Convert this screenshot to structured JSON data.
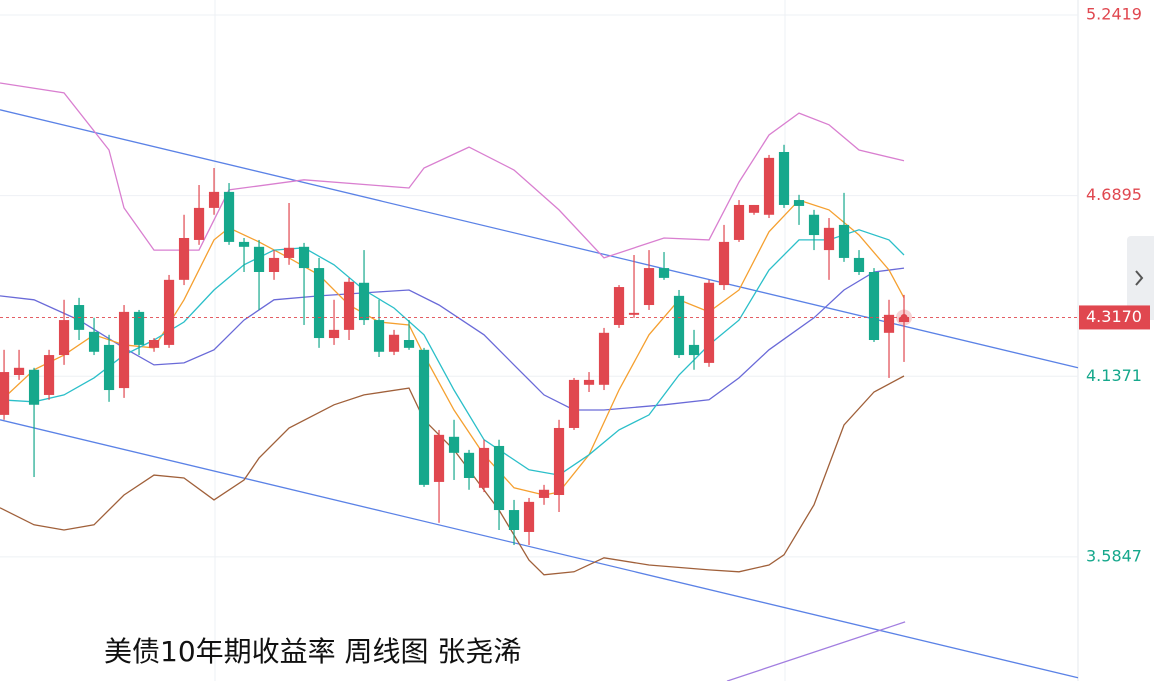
{
  "chart_data": {
    "type": "candlestick",
    "title": "美债10年期收益率 周线图 张尧浠",
    "up_color": "#e0474f",
    "down_color": "#16a88c",
    "xlim": [
      -0.27,
      71.6
    ],
    "ylim": [
      3.2052,
      5.2878
    ],
    "yticks": [
      5.2419,
      4.6895,
      4.1371,
      3.5847
    ],
    "grid": true,
    "last_price": {
      "value": 4.317,
      "label": "4.3170"
    },
    "ohlc": [
      [
        4.019,
        4.218,
        4.004,
        4.15
      ],
      [
        4.141,
        4.218,
        4.126,
        4.163
      ],
      [
        4.157,
        4.163,
        3.829,
        4.05
      ],
      [
        4.08,
        4.218,
        4.065,
        4.202
      ],
      [
        4.202,
        4.371,
        4.172,
        4.309
      ],
      [
        4.355,
        4.377,
        4.248,
        4.279
      ],
      [
        4.273,
        4.316,
        4.202,
        4.212
      ],
      [
        4.233,
        4.264,
        4.059,
        4.095
      ],
      [
        4.101,
        4.355,
        4.071,
        4.334
      ],
      [
        4.334,
        4.34,
        4.202,
        4.233
      ],
      [
        4.224,
        4.254,
        4.212,
        4.248
      ],
      [
        4.233,
        4.447,
        4.224,
        4.432
      ],
      [
        4.432,
        4.631,
        4.416,
        4.56
      ],
      [
        4.554,
        4.722,
        4.539,
        4.652
      ],
      [
        4.652,
        4.774,
        4.631,
        4.701
      ],
      [
        4.701,
        4.728,
        4.539,
        4.548
      ],
      [
        4.548,
        4.56,
        4.456,
        4.533
      ],
      [
        4.533,
        4.554,
        4.34,
        4.456
      ],
      [
        4.456,
        4.523,
        4.432,
        4.499
      ],
      [
        4.499,
        4.667,
        4.478,
        4.53
      ],
      [
        4.533,
        4.545,
        4.294,
        4.468
      ],
      [
        4.468,
        4.499,
        4.224,
        4.254
      ],
      [
        4.254,
        4.371,
        4.233,
        4.279
      ],
      [
        4.279,
        4.438,
        4.248,
        4.426
      ],
      [
        4.423,
        4.523,
        4.294,
        4.309
      ],
      [
        4.309,
        4.371,
        4.196,
        4.212
      ],
      [
        4.212,
        4.279,
        4.202,
        4.264
      ],
      [
        4.248,
        4.309,
        4.218,
        4.224
      ],
      [
        4.218,
        4.224,
        3.799,
        3.805
      ],
      [
        3.814,
        3.973,
        3.689,
        3.958
      ],
      [
        3.952,
        4.004,
        3.82,
        3.903
      ],
      [
        3.903,
        3.912,
        3.79,
        3.826
      ],
      [
        3.796,
        3.943,
        3.783,
        3.918
      ],
      [
        3.924,
        3.943,
        3.667,
        3.728
      ],
      [
        3.728,
        3.759,
        3.621,
        3.667
      ],
      [
        3.661,
        3.765,
        3.621,
        3.753
      ],
      [
        3.765,
        3.805,
        3.744,
        3.79
      ],
      [
        3.774,
        4.004,
        3.722,
        3.979
      ],
      [
        3.979,
        4.132,
        3.973,
        4.126
      ],
      [
        4.111,
        4.15,
        4.089,
        4.126
      ],
      [
        4.111,
        4.285,
        4.095,
        4.27
      ],
      [
        4.294,
        4.416,
        4.285,
        4.41
      ],
      [
        4.325,
        4.508,
        4.316,
        4.331
      ],
      [
        4.355,
        4.523,
        4.34,
        4.468
      ],
      [
        4.468,
        4.517,
        4.432,
        4.438
      ],
      [
        4.383,
        4.401,
        4.193,
        4.202
      ],
      [
        4.233,
        4.279,
        4.157,
        4.202
      ],
      [
        4.178,
        4.432,
        4.166,
        4.423
      ],
      [
        4.416,
        4.6,
        4.401,
        4.548
      ],
      [
        4.554,
        4.676,
        4.548,
        4.661
      ],
      [
        4.637,
        4.661,
        4.631,
        4.661
      ],
      [
        4.631,
        4.814,
        4.621,
        4.805
      ],
      [
        4.823,
        4.845,
        4.652,
        4.661
      ],
      [
        4.676,
        4.692,
        4.6,
        4.658
      ],
      [
        4.631,
        4.646,
        4.523,
        4.569
      ],
      [
        4.523,
        4.621,
        4.432,
        4.591
      ],
      [
        4.6,
        4.698,
        4.487,
        4.499
      ],
      [
        4.499,
        4.523,
        4.447,
        4.456
      ],
      [
        4.456,
        4.468,
        4.242,
        4.248
      ],
      [
        4.27,
        4.371,
        4.132,
        4.325
      ],
      [
        4.303,
        4.386,
        4.181,
        4.317
      ]
    ],
    "overlays": [
      {
        "color": "#5b82e6",
        "x": [
          -0.27,
          71.6
        ],
        "values": [
          4.952,
          4.163
        ]
      },
      {
        "color": "#5b82e6",
        "x": [
          -0.27,
          71.6
        ],
        "values": [
          4.004,
          3.215
        ]
      },
      {
        "color": "#a27ee0",
        "x": [
          48.2,
          60.07
        ],
        "values": [
          3.205,
          3.386
        ]
      },
      {
        "color": "#d97fd0",
        "x": [
          -0.27,
          4,
          7,
          8,
          10,
          13,
          15,
          20,
          27,
          28,
          31,
          34,
          37,
          40,
          44,
          47,
          49,
          51,
          53,
          55,
          57,
          60
        ],
        "values": [
          5.034,
          5.004,
          4.829,
          4.652,
          4.523,
          4.523,
          4.707,
          4.738,
          4.713,
          4.774,
          4.838,
          4.768,
          4.646,
          4.499,
          4.56,
          4.554,
          4.731,
          4.875,
          4.942,
          4.906,
          4.829,
          4.796
        ]
      },
      {
        "color": "#6a6ad8",
        "x": [
          -0.27,
          2,
          5,
          8,
          10,
          12,
          14,
          16,
          18,
          21,
          25,
          27,
          29,
          32,
          34,
          36,
          38,
          40,
          44,
          47,
          49,
          51,
          54,
          56,
          58,
          60
        ],
        "values": [
          4.383,
          4.371,
          4.309,
          4.224,
          4.172,
          4.178,
          4.218,
          4.309,
          4.371,
          4.383,
          4.395,
          4.401,
          4.355,
          4.264,
          4.172,
          4.08,
          4.034,
          4.034,
          4.05,
          4.065,
          4.132,
          4.218,
          4.316,
          4.401,
          4.456,
          4.468
        ]
      },
      {
        "color": "#a0603a",
        "x": [
          -0.27,
          2,
          4,
          6,
          8,
          10,
          12,
          14,
          16,
          17,
          19,
          22,
          24,
          27,
          28,
          30,
          33,
          35,
          36,
          38,
          40,
          43,
          47,
          49,
          51,
          52,
          54,
          56,
          58,
          60
        ],
        "values": [
          3.735,
          3.683,
          3.667,
          3.683,
          3.774,
          3.835,
          3.826,
          3.759,
          3.82,
          3.887,
          3.979,
          4.05,
          4.08,
          4.101,
          4.004,
          3.912,
          3.728,
          3.575,
          3.53,
          3.539,
          3.582,
          3.56,
          3.545,
          3.539,
          3.56,
          3.591,
          3.744,
          3.988,
          4.089,
          4.138
        ]
      },
      {
        "color": "#f5a030",
        "x": [
          0,
          2,
          4,
          6,
          8,
          10,
          12,
          14,
          15,
          17,
          19,
          21,
          23,
          25,
          27,
          28,
          30,
          32,
          34,
          36,
          37,
          39,
          41,
          43,
          45,
          47,
          49,
          51,
          53,
          55,
          57,
          59,
          60
        ],
        "values": [
          4.071,
          4.157,
          4.202,
          4.264,
          4.233,
          4.224,
          4.371,
          4.554,
          4.591,
          4.548,
          4.499,
          4.447,
          4.355,
          4.303,
          4.294,
          4.202,
          4.034,
          3.897,
          3.796,
          3.774,
          3.783,
          3.897,
          4.095,
          4.264,
          4.371,
          4.334,
          4.401,
          4.579,
          4.676,
          4.646,
          4.569,
          4.462,
          4.377
        ]
      },
      {
        "color": "#2bbfc9",
        "x": [
          -0.27,
          2,
          4,
          6,
          8,
          10,
          12,
          14,
          16,
          18,
          20,
          22,
          24,
          26,
          28,
          30,
          32,
          35,
          37,
          39,
          41,
          43,
          45,
          47,
          49,
          51,
          53,
          55,
          57,
          59,
          60
        ],
        "values": [
          4.065,
          4.059,
          4.08,
          4.132,
          4.202,
          4.248,
          4.303,
          4.401,
          4.478,
          4.523,
          4.53,
          4.478,
          4.401,
          4.346,
          4.264,
          4.095,
          3.943,
          3.851,
          3.835,
          3.897,
          3.973,
          4.019,
          4.141,
          4.233,
          4.309,
          4.462,
          4.554,
          4.554,
          4.585,
          4.554,
          4.508
        ]
      }
    ]
  }
}
